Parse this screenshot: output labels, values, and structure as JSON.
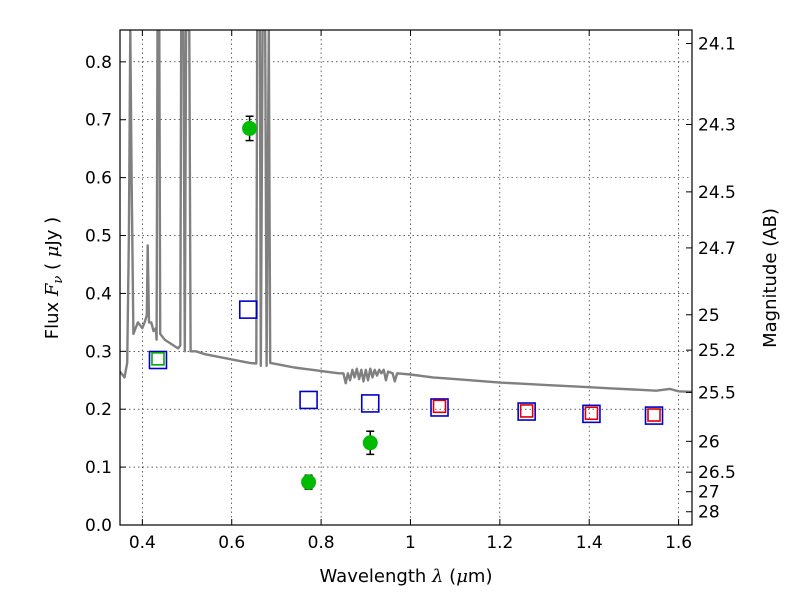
{
  "chart_data": {
    "type": "scatter",
    "xlabel": "Wavelength  λ (μm)",
    "ylabel": "Flux  F_ν  ( μJy )",
    "y2label": "Magnitude (AB)",
    "xlim": [
      0.35,
      1.63
    ],
    "ylim": [
      0.0,
      0.855
    ],
    "grid": true,
    "colors": {
      "spectrum": "#808080",
      "detections": "#00bb00",
      "model_blue": "#0000cc",
      "model_red": "#dd0000",
      "model_green": "#00aa00"
    },
    "x_ticks": [
      {
        "value": 0.4,
        "label": "0.4"
      },
      {
        "value": 0.6,
        "label": "0.6"
      },
      {
        "value": 0.8,
        "label": "0.8"
      },
      {
        "value": 1.0,
        "label": "1"
      },
      {
        "value": 1.2,
        "label": "1.2"
      },
      {
        "value": 1.4,
        "label": "1.4"
      },
      {
        "value": 1.6,
        "label": "1.6"
      }
    ],
    "y_ticks": [
      {
        "value": 0.0,
        "label": "0.0"
      },
      {
        "value": 0.1,
        "label": "0.1"
      },
      {
        "value": 0.2,
        "label": "0.2"
      },
      {
        "value": 0.3,
        "label": "0.3"
      },
      {
        "value": 0.4,
        "label": "0.4"
      },
      {
        "value": 0.5,
        "label": "0.5"
      },
      {
        "value": 0.6,
        "label": "0.6"
      },
      {
        "value": 0.7,
        "label": "0.7"
      },
      {
        "value": 0.8,
        "label": "0.8"
      }
    ],
    "y2_ticks": [
      {
        "label": "24.1",
        "flux": 0.8317
      },
      {
        "label": "24.3",
        "flux": 0.6918
      },
      {
        "label": "24.5",
        "flux": 0.5754
      },
      {
        "label": "24.7",
        "flux": 0.4786
      },
      {
        "label": "25",
        "flux": 0.3631
      },
      {
        "label": "25.2",
        "flux": 0.302
      },
      {
        "label": "25.5",
        "flux": 0.2291
      },
      {
        "label": "26",
        "flux": 0.1445
      },
      {
        "label": "26.5",
        "flux": 0.0912
      },
      {
        "label": "27",
        "flux": 0.0575
      },
      {
        "label": "28",
        "flux": 0.0229
      }
    ],
    "detections": [
      {
        "x": 0.64,
        "y": 0.685,
        "err": 0.021
      },
      {
        "x": 0.772,
        "y": 0.074,
        "err": 0.012
      },
      {
        "x": 0.91,
        "y": 0.142,
        "err": 0.02
      }
    ],
    "model_blue": [
      {
        "x": 0.435,
        "y": 0.285
      },
      {
        "x": 0.637,
        "y": 0.372
      },
      {
        "x": 0.772,
        "y": 0.216
      },
      {
        "x": 0.91,
        "y": 0.21
      },
      {
        "x": 1.065,
        "y": 0.203
      },
      {
        "x": 1.26,
        "y": 0.196
      },
      {
        "x": 1.405,
        "y": 0.192
      },
      {
        "x": 1.545,
        "y": 0.189
      }
    ],
    "model_red": [
      {
        "x": 1.065,
        "y": 0.205
      },
      {
        "x": 1.26,
        "y": 0.197
      },
      {
        "x": 1.405,
        "y": 0.193
      },
      {
        "x": 1.545,
        "y": 0.19
      }
    ],
    "model_green": [
      {
        "x": 0.435,
        "y": 0.287
      }
    ],
    "spectrum": [
      [
        0.35,
        0.265
      ],
      [
        0.36,
        0.255
      ],
      [
        0.366,
        0.28
      ],
      [
        0.37,
        0.5
      ],
      [
        0.373,
        0.855
      ],
      [
        0.376,
        0.6
      ],
      [
        0.38,
        0.33
      ],
      [
        0.385,
        0.34
      ],
      [
        0.39,
        0.35
      ],
      [
        0.395,
        0.345
      ],
      [
        0.4,
        0.34
      ],
      [
        0.405,
        0.35
      ],
      [
        0.41,
        0.362
      ],
      [
        0.412,
        0.483
      ],
      [
        0.415,
        0.35
      ],
      [
        0.42,
        0.35
      ],
      [
        0.425,
        0.335
      ],
      [
        0.43,
        0.34
      ],
      [
        0.432,
        0.32
      ],
      [
        0.434,
        0.855
      ],
      [
        0.438,
        0.855
      ],
      [
        0.44,
        0.33
      ],
      [
        0.45,
        0.32
      ],
      [
        0.46,
        0.315
      ],
      [
        0.47,
        0.31
      ],
      [
        0.48,
        0.305
      ],
      [
        0.485,
        0.31
      ],
      [
        0.487,
        0.855
      ],
      [
        0.492,
        0.855
      ],
      [
        0.495,
        0.3
      ],
      [
        0.498,
        0.855
      ],
      [
        0.505,
        0.855
      ],
      [
        0.508,
        0.3
      ],
      [
        0.52,
        0.3
      ],
      [
        0.54,
        0.295
      ],
      [
        0.56,
        0.292
      ],
      [
        0.58,
        0.289
      ],
      [
        0.6,
        0.286
      ],
      [
        0.62,
        0.283
      ],
      [
        0.64,
        0.28
      ],
      [
        0.655,
        0.279
      ],
      [
        0.657,
        0.855
      ],
      [
        0.663,
        0.855
      ],
      [
        0.665,
        0.275
      ],
      [
        0.669,
        0.855
      ],
      [
        0.675,
        0.855
      ],
      [
        0.678,
        0.275
      ],
      [
        0.683,
        0.855
      ],
      [
        0.686,
        0.28
      ],
      [
        0.7,
        0.278
      ],
      [
        0.72,
        0.275
      ],
      [
        0.74,
        0.272
      ],
      [
        0.76,
        0.27
      ],
      [
        0.78,
        0.268
      ],
      [
        0.8,
        0.266
      ],
      [
        0.82,
        0.264
      ],
      [
        0.84,
        0.262
      ],
      [
        0.85,
        0.262
      ],
      [
        0.855,
        0.245
      ],
      [
        0.86,
        0.262
      ],
      [
        0.865,
        0.25
      ],
      [
        0.87,
        0.268
      ],
      [
        0.875,
        0.255
      ],
      [
        0.88,
        0.27
      ],
      [
        0.885,
        0.252
      ],
      [
        0.89,
        0.268
      ],
      [
        0.895,
        0.248
      ],
      [
        0.9,
        0.268
      ],
      [
        0.905,
        0.25
      ],
      [
        0.91,
        0.27
      ],
      [
        0.915,
        0.255
      ],
      [
        0.92,
        0.268
      ],
      [
        0.925,
        0.258
      ],
      [
        0.93,
        0.268
      ],
      [
        0.935,
        0.262
      ],
      [
        0.94,
        0.268
      ],
      [
        0.945,
        0.25
      ],
      [
        0.95,
        0.265
      ],
      [
        0.96,
        0.262
      ],
      [
        0.965,
        0.248
      ],
      [
        0.97,
        0.262
      ],
      [
        1.0,
        0.26
      ],
      [
        1.05,
        0.255
      ],
      [
        1.1,
        0.252
      ],
      [
        1.15,
        0.249
      ],
      [
        1.2,
        0.246
      ],
      [
        1.25,
        0.244
      ],
      [
        1.3,
        0.242
      ],
      [
        1.35,
        0.24
      ],
      [
        1.4,
        0.238
      ],
      [
        1.45,
        0.236
      ],
      [
        1.5,
        0.234
      ],
      [
        1.55,
        0.232
      ],
      [
        1.58,
        0.235
      ],
      [
        1.6,
        0.231
      ],
      [
        1.63,
        0.23
      ]
    ]
  }
}
